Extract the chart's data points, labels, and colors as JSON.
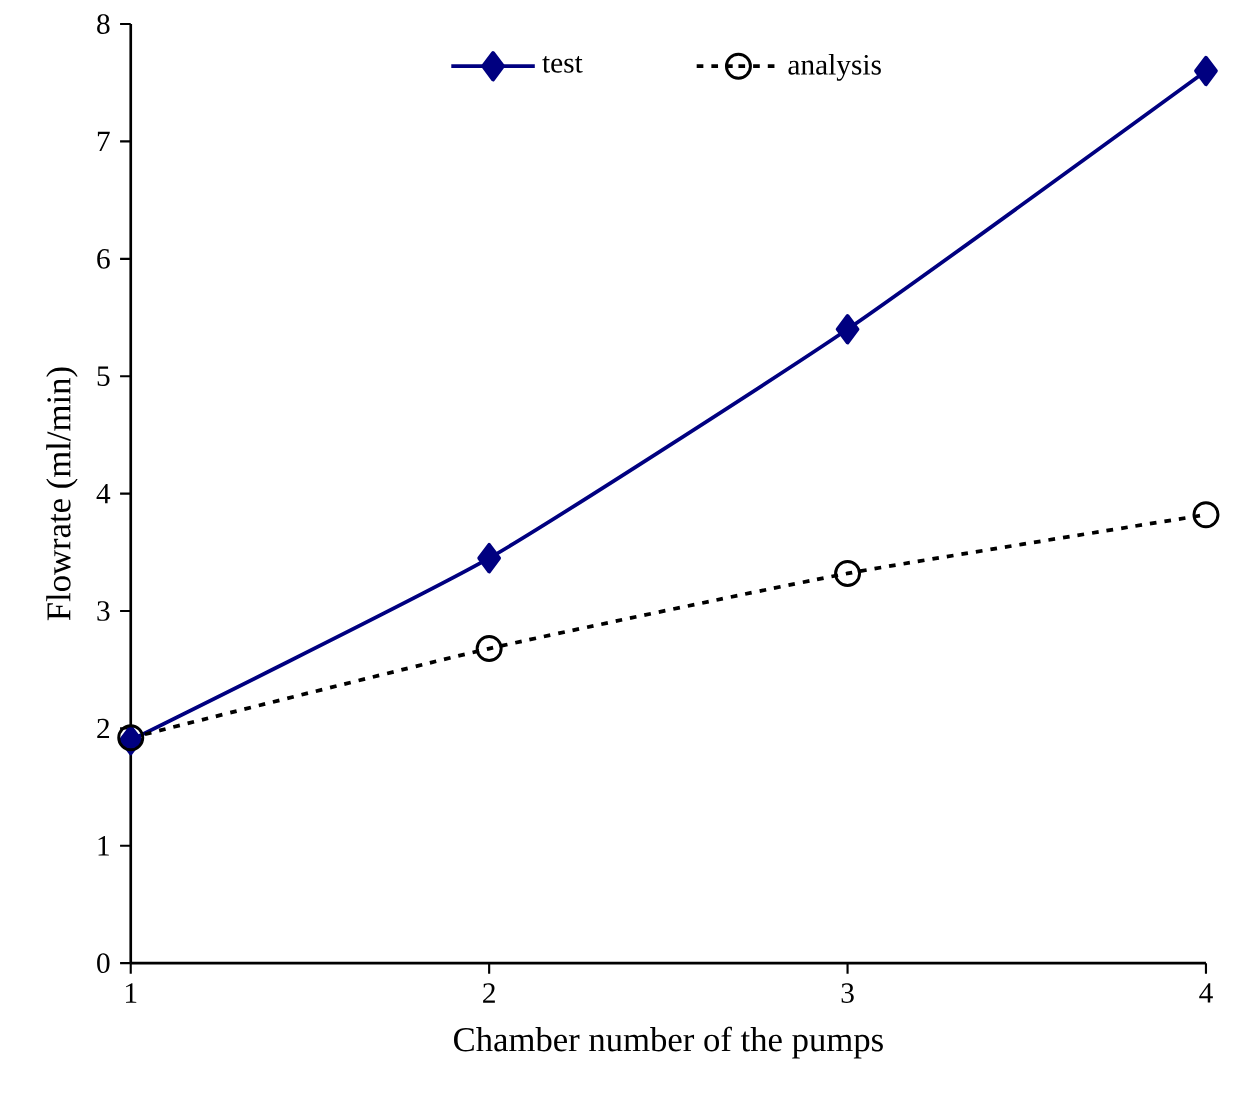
{
  "chart_data": {
    "type": "line",
    "xlabel": "Chamber number of the pumps",
    "ylabel": "Flowrate (ml/min)",
    "x": [
      1,
      2,
      3,
      4
    ],
    "series": [
      {
        "name": "test",
        "color": "#000080",
        "values": [
          1.9,
          3.45,
          5.4,
          7.6
        ],
        "marker": "diamond",
        "line_style": "solid"
      },
      {
        "name": "analysis",
        "color": "#000000",
        "values": [
          1.92,
          2.68,
          3.32,
          3.82
        ],
        "marker": "circle",
        "line_style": "dotted"
      }
    ],
    "xlim": [
      1,
      4
    ],
    "xticks": [
      1,
      2,
      3,
      4
    ],
    "ylim": [
      0,
      8
    ],
    "yticks": [
      0,
      1,
      2,
      3,
      4,
      5,
      6,
      7,
      8
    ],
    "grid": false,
    "legend": "top"
  }
}
